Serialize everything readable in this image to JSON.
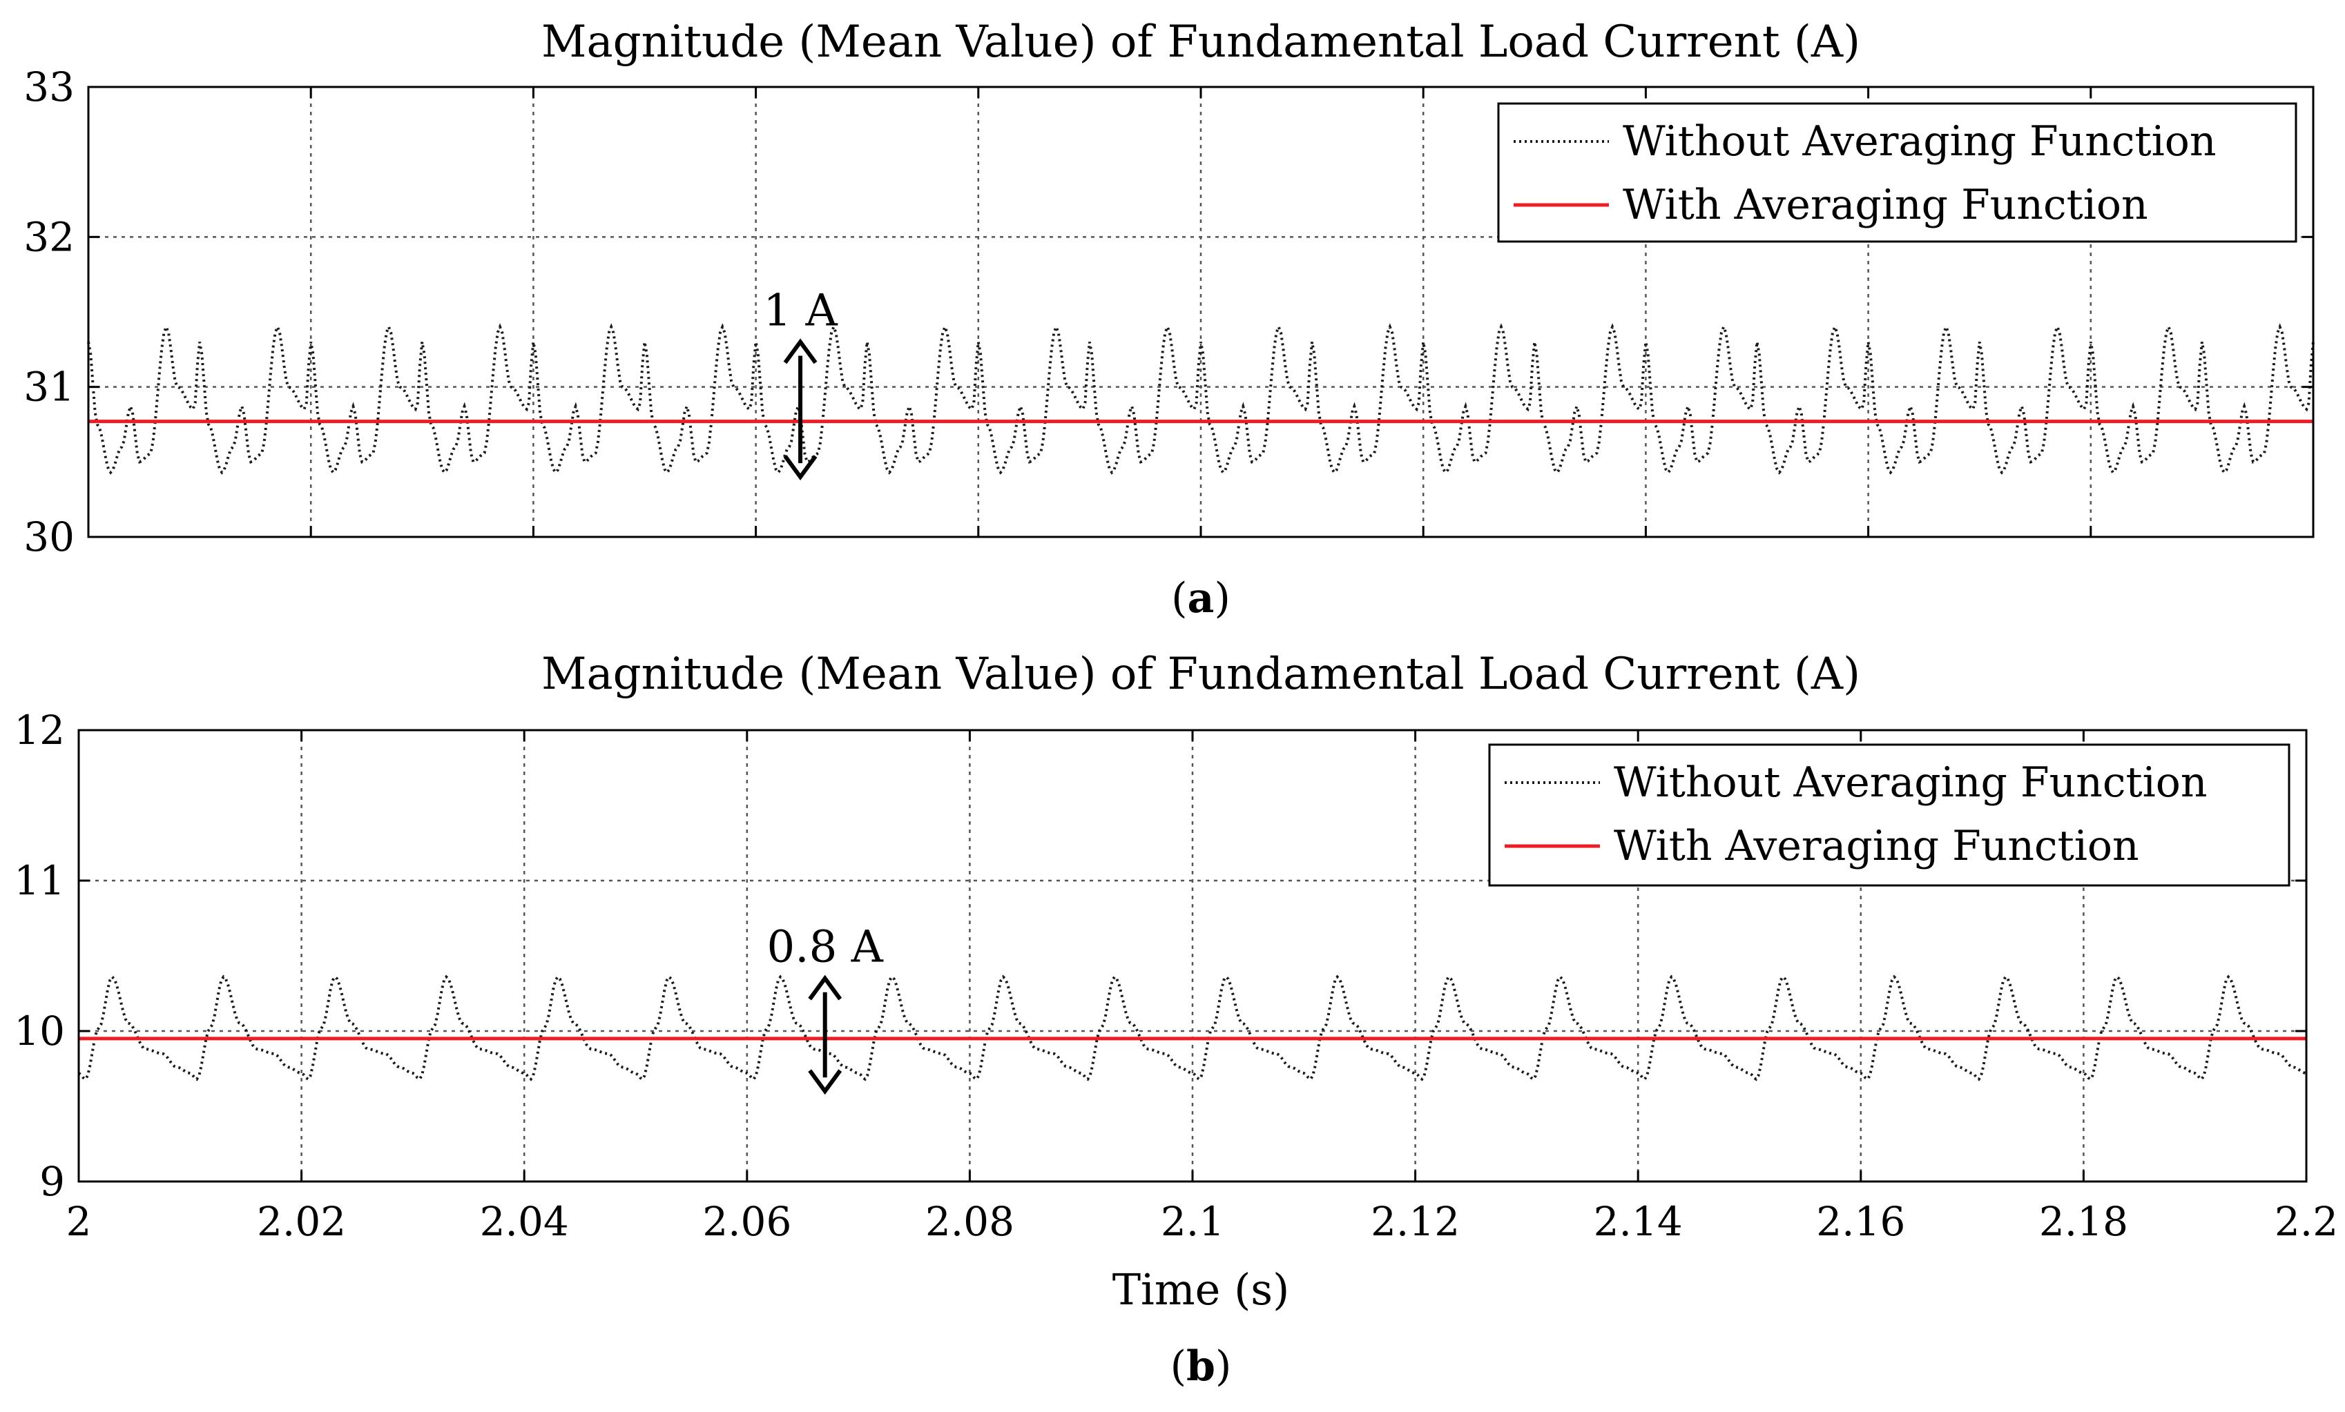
{
  "figure": {
    "captions": [
      {
        "open": "(",
        "letter": "a",
        "close": ")"
      },
      {
        "open": "(",
        "letter": "b",
        "close": ")"
      }
    ],
    "xlabel": "Time (s)"
  },
  "chart_data": [
    {
      "type": "line",
      "title": "Magnitude (Mean Value) of Fundamental Load Current (A)",
      "xlabel": "",
      "ylabel": "",
      "xlim": [
        2.0,
        2.2
      ],
      "ylim": [
        30,
        33
      ],
      "x_ticks": [
        2.0,
        2.02,
        2.04,
        2.06,
        2.08,
        2.1,
        2.12,
        2.14,
        2.16,
        2.18,
        2.2
      ],
      "x_tick_labels_shown": false,
      "y_ticks": [
        30,
        31,
        32,
        33
      ],
      "y_tick_labels": [
        "30",
        "31",
        "32",
        "33"
      ],
      "grid": true,
      "legend_position": "top-right",
      "annotation": {
        "text": "1 A",
        "x": 2.064,
        "y_from": 30.4,
        "y_to": 31.3
      },
      "series": [
        {
          "name": "Without Averaging Function",
          "style": "dotted",
          "color": "#1a1a1a",
          "period": 0.01,
          "x_start": 2.0,
          "x_end": 2.2,
          "waveform": [
            {
              "t": 0.0,
              "y": 31.3
            },
            {
              "t": 0.08,
              "y": 30.75
            },
            {
              "t": 0.2,
              "y": 30.43
            },
            {
              "t": 0.3,
              "y": 30.6
            },
            {
              "t": 0.38,
              "y": 30.87
            },
            {
              "t": 0.46,
              "y": 30.5
            },
            {
              "t": 0.55,
              "y": 30.55
            },
            {
              "t": 0.7,
              "y": 31.4
            },
            {
              "t": 0.8,
              "y": 31.0
            },
            {
              "t": 0.95,
              "y": 30.85
            },
            {
              "t": 1.0,
              "y": 31.3
            }
          ]
        },
        {
          "name": "With Averaging Function",
          "style": "solid",
          "color": "#ee1c25",
          "x": [
            2.0,
            2.2
          ],
          "y": [
            30.77,
            30.77
          ]
        }
      ]
    },
    {
      "type": "line",
      "title": "Magnitude (Mean Value) of Fundamental Load Current (A)",
      "xlabel": "Time (s)",
      "ylabel": "",
      "xlim": [
        2.0,
        2.2
      ],
      "ylim": [
        9,
        12
      ],
      "x_ticks": [
        2.0,
        2.02,
        2.04,
        2.06,
        2.08,
        2.1,
        2.12,
        2.14,
        2.16,
        2.18,
        2.2
      ],
      "x_tick_labels": [
        "2",
        "2.02",
        "2.04",
        "2.06",
        "2.08",
        "2.1",
        "2.12",
        "2.14",
        "2.16",
        "2.18",
        "2.2"
      ],
      "y_ticks": [
        9,
        10,
        11,
        12
      ],
      "y_tick_labels": [
        "9",
        "10",
        "11",
        "12"
      ],
      "grid": true,
      "legend_position": "top-right",
      "annotation": {
        "text": "0.8 A",
        "x": 2.067,
        "y_from": 9.6,
        "y_to": 10.35
      },
      "series": [
        {
          "name": "Without Averaging Function",
          "style": "dotted",
          "color": "#1a1a1a",
          "period": 0.01,
          "x_start": 2.0,
          "x_end": 2.2,
          "waveform": [
            {
              "t": 0.0,
              "y": 9.72
            },
            {
              "t": 0.06,
              "y": 9.68
            },
            {
              "t": 0.18,
              "y": 10.02
            },
            {
              "t": 0.3,
              "y": 10.36
            },
            {
              "t": 0.45,
              "y": 10.05
            },
            {
              "t": 0.6,
              "y": 9.88
            },
            {
              "t": 0.75,
              "y": 9.85
            },
            {
              "t": 0.88,
              "y": 9.76
            },
            {
              "t": 1.0,
              "y": 9.72
            }
          ]
        },
        {
          "name": "With Averaging Function",
          "style": "solid",
          "color": "#ee1c25",
          "x": [
            2.0,
            2.2
          ],
          "y": [
            9.95,
            9.95
          ]
        }
      ]
    }
  ]
}
